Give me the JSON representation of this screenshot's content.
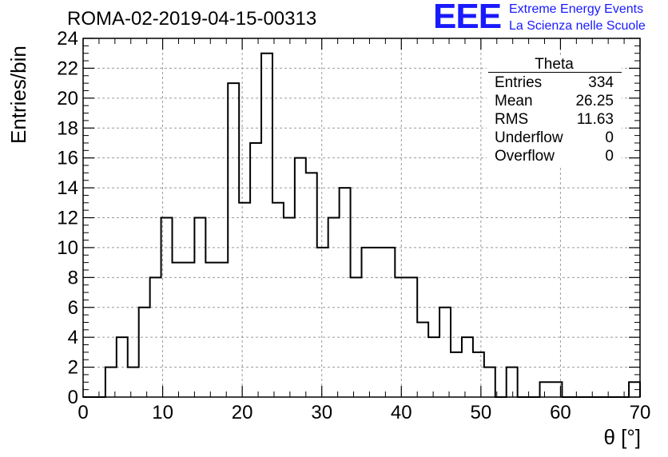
{
  "header": {
    "run_title": "ROMA-02-2019-04-15-00313",
    "logo_text": "EEE",
    "logo_line1": "Extreme Energy Events",
    "logo_line2": "La Scienza nelle Scuole"
  },
  "stats_box": {
    "title": "Theta",
    "rows": [
      {
        "key": "Entries",
        "value": "334"
      },
      {
        "key": "Mean",
        "value": "26.25"
      },
      {
        "key": "RMS",
        "value": "11.63"
      },
      {
        "key": "Underflow",
        "value": "0"
      },
      {
        "key": "Overflow",
        "value": "0"
      }
    ]
  },
  "colors": {
    "logo": "#1a1aff",
    "line": "#000000",
    "grid": "#9a9a9a"
  },
  "chart_data": {
    "type": "bar",
    "style": "step-histogram",
    "xlabel": "θ [°]",
    "ylabel": "Entries/bin",
    "xlim": [
      0,
      70
    ],
    "ylim": [
      0,
      24
    ],
    "bin_width": 1.4,
    "bin_start": 0,
    "x_ticks": [
      0,
      10,
      20,
      30,
      40,
      50,
      60,
      70
    ],
    "y_ticks": [
      0,
      2,
      4,
      6,
      8,
      10,
      12,
      14,
      16,
      18,
      20,
      22,
      24
    ],
    "grid": true,
    "values": [
      0,
      0,
      2,
      4,
      2,
      6,
      8,
      12,
      9,
      9,
      12,
      9,
      9,
      21,
      13,
      17,
      23,
      13,
      12,
      16,
      15,
      10,
      12,
      14,
      8,
      10,
      10,
      10,
      8,
      8,
      5,
      4,
      6,
      3,
      4,
      3,
      2,
      0,
      2,
      0,
      0,
      1,
      1,
      0,
      0,
      0,
      0,
      0,
      0,
      1
    ]
  }
}
